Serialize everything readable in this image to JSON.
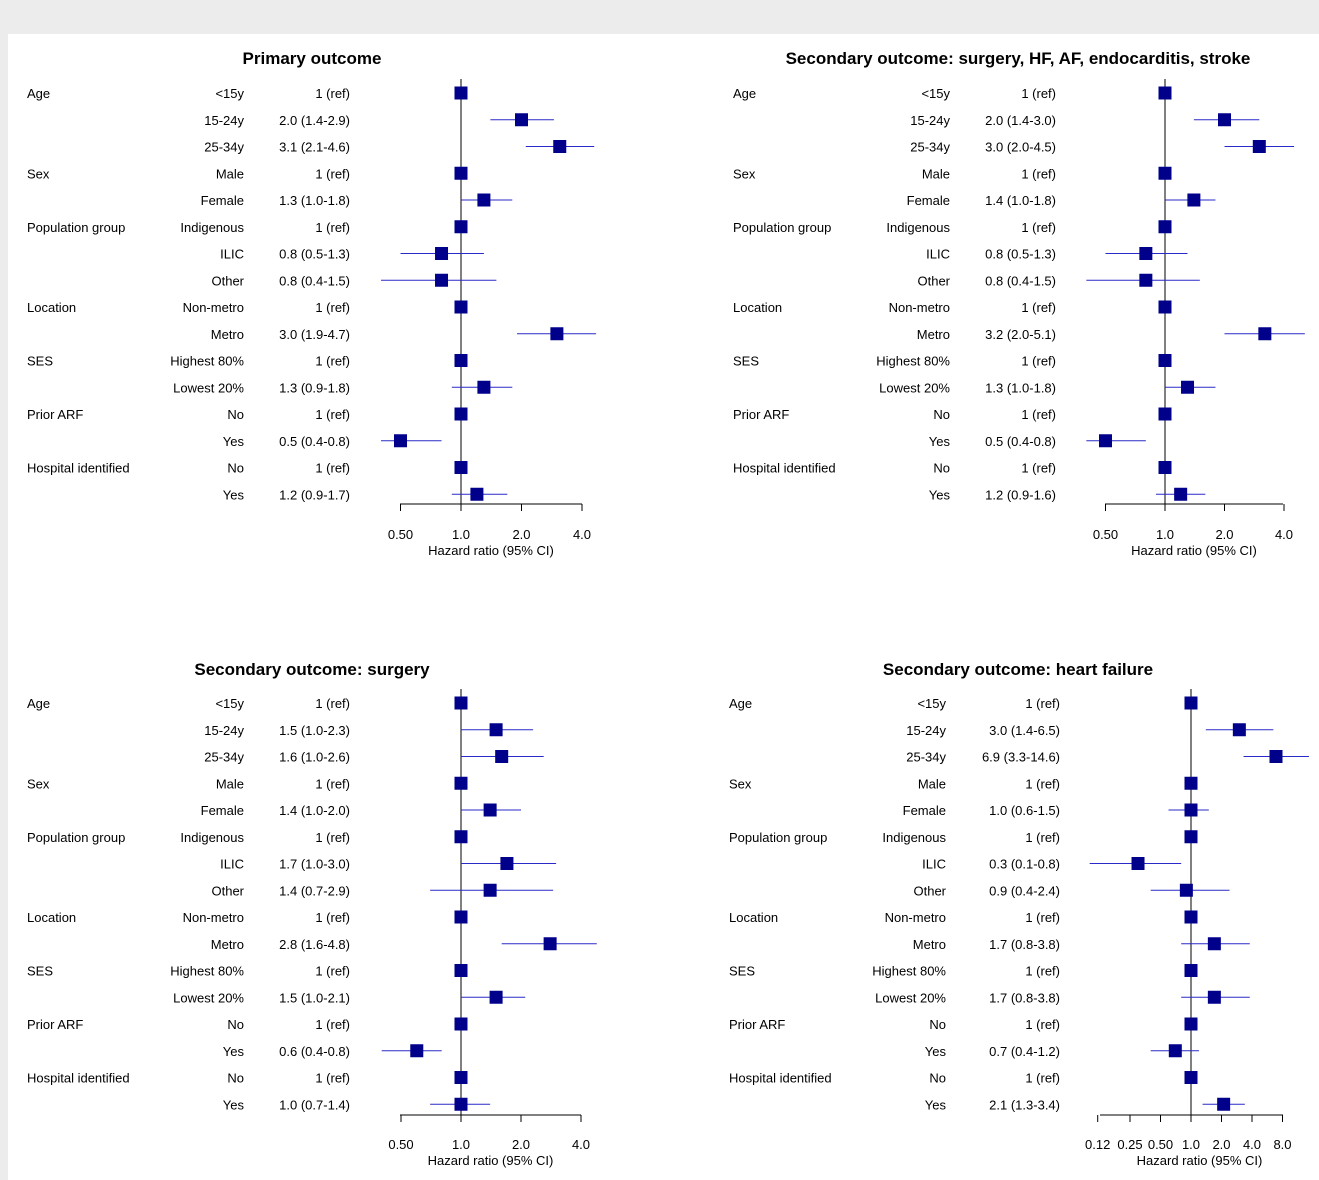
{
  "chart_data": [
    {
      "type": "forest",
      "title": "Primary outcome",
      "xlabel": "Hazard ratio (95% CI)",
      "x_scale": "log",
      "xticks": [
        0.5,
        1.0,
        2.0,
        4.0
      ],
      "xtick_labels": [
        "0.50",
        "1.0",
        "2.0",
        "4.0"
      ],
      "reference_line": 1.0,
      "rows": [
        {
          "variable": "Age",
          "level": "<15y",
          "label": "1 (ref)",
          "hr": 1.0,
          "lo": null,
          "hi": null
        },
        {
          "variable": "",
          "level": "15-24y",
          "label": "2.0 (1.4-2.9)",
          "hr": 2.0,
          "lo": 1.4,
          "hi": 2.9
        },
        {
          "variable": "",
          "level": "25-34y",
          "label": "3.1 (2.1-4.6)",
          "hr": 3.1,
          "lo": 2.1,
          "hi": 4.6
        },
        {
          "variable": "Sex",
          "level": "Male",
          "label": "1 (ref)",
          "hr": 1.0,
          "lo": null,
          "hi": null
        },
        {
          "variable": "",
          "level": "Female",
          "label": "1.3 (1.0-1.8)",
          "hr": 1.3,
          "lo": 1.0,
          "hi": 1.8
        },
        {
          "variable": "Population group",
          "level": "Indigenous",
          "label": "1 (ref)",
          "hr": 1.0,
          "lo": null,
          "hi": null
        },
        {
          "variable": "",
          "level": "ILIC",
          "label": "0.8 (0.5-1.3)",
          "hr": 0.8,
          "lo": 0.5,
          "hi": 1.3
        },
        {
          "variable": "",
          "level": "Other",
          "label": "0.8 (0.4-1.5)",
          "hr": 0.8,
          "lo": 0.4,
          "hi": 1.5
        },
        {
          "variable": "Location",
          "level": "Non-metro",
          "label": "1 (ref)",
          "hr": 1.0,
          "lo": null,
          "hi": null
        },
        {
          "variable": "",
          "level": "Metro",
          "label": "3.0 (1.9-4.7)",
          "hr": 3.0,
          "lo": 1.9,
          "hi": 4.7
        },
        {
          "variable": "SES",
          "level": "Highest 80%",
          "label": "1 (ref)",
          "hr": 1.0,
          "lo": null,
          "hi": null
        },
        {
          "variable": "",
          "level": "Lowest 20%",
          "label": "1.3 (0.9-1.8)",
          "hr": 1.3,
          "lo": 0.9,
          "hi": 1.8
        },
        {
          "variable": "Prior ARF",
          "level": "No",
          "label": "1 (ref)",
          "hr": 1.0,
          "lo": null,
          "hi": null
        },
        {
          "variable": "",
          "level": "Yes",
          "label": "0.5 (0.4-0.8)",
          "hr": 0.5,
          "lo": 0.4,
          "hi": 0.8
        },
        {
          "variable": "Hospital identified",
          "level": "No",
          "label": "1 (ref)",
          "hr": 1.0,
          "lo": null,
          "hi": null
        },
        {
          "variable": "",
          "level": "Yes",
          "label": "1.2 (0.9-1.7)",
          "hr": 1.2,
          "lo": 0.9,
          "hi": 1.7
        }
      ]
    },
    {
      "type": "forest",
      "title": "Secondary outcome: surgery, HF, AF, endocarditis, stroke",
      "xlabel": "Hazard ratio (95% CI)",
      "x_scale": "log",
      "xticks": [
        0.5,
        1.0,
        2.0,
        4.0
      ],
      "xtick_labels": [
        "0.50",
        "1.0",
        "2.0",
        "4.0"
      ],
      "reference_line": 1.0,
      "rows": [
        {
          "variable": "Age",
          "level": "<15y",
          "label": "1 (ref)",
          "hr": 1.0,
          "lo": null,
          "hi": null
        },
        {
          "variable": "",
          "level": "15-24y",
          "label": "2.0 (1.4-3.0)",
          "hr": 2.0,
          "lo": 1.4,
          "hi": 3.0
        },
        {
          "variable": "",
          "level": "25-34y",
          "label": "3.0 (2.0-4.5)",
          "hr": 3.0,
          "lo": 2.0,
          "hi": 4.5
        },
        {
          "variable": "Sex",
          "level": "Male",
          "label": "1 (ref)",
          "hr": 1.0,
          "lo": null,
          "hi": null
        },
        {
          "variable": "",
          "level": "Female",
          "label": "1.4 (1.0-1.8)",
          "hr": 1.4,
          "lo": 1.0,
          "hi": 1.8
        },
        {
          "variable": "Population group",
          "level": "Indigenous",
          "label": "1 (ref)",
          "hr": 1.0,
          "lo": null,
          "hi": null
        },
        {
          "variable": "",
          "level": "ILIC",
          "label": "0.8 (0.5-1.3)",
          "hr": 0.8,
          "lo": 0.5,
          "hi": 1.3
        },
        {
          "variable": "",
          "level": "Other",
          "label": "0.8 (0.4-1.5)",
          "hr": 0.8,
          "lo": 0.4,
          "hi": 1.5
        },
        {
          "variable": "Location",
          "level": "Non-metro",
          "label": "1 (ref)",
          "hr": 1.0,
          "lo": null,
          "hi": null
        },
        {
          "variable": "",
          "level": "Metro",
          "label": "3.2 (2.0-5.1)",
          "hr": 3.2,
          "lo": 2.0,
          "hi": 5.1
        },
        {
          "variable": "SES",
          "level": "Highest 80%",
          "label": "1 (ref)",
          "hr": 1.0,
          "lo": null,
          "hi": null
        },
        {
          "variable": "",
          "level": "Lowest 20%",
          "label": "1.3 (1.0-1.8)",
          "hr": 1.3,
          "lo": 1.0,
          "hi": 1.8
        },
        {
          "variable": "Prior ARF",
          "level": "No",
          "label": "1 (ref)",
          "hr": 1.0,
          "lo": null,
          "hi": null
        },
        {
          "variable": "",
          "level": "Yes",
          "label": "0.5 (0.4-0.8)",
          "hr": 0.5,
          "lo": 0.4,
          "hi": 0.8
        },
        {
          "variable": "Hospital identified",
          "level": "No",
          "label": "1 (ref)",
          "hr": 1.0,
          "lo": null,
          "hi": null
        },
        {
          "variable": "",
          "level": "Yes",
          "label": "1.2 (0.9-1.6)",
          "hr": 1.2,
          "lo": 0.9,
          "hi": 1.6
        }
      ]
    },
    {
      "type": "forest",
      "title": "Secondary outcome: surgery",
      "xlabel": "Hazard ratio (95% CI)",
      "x_scale": "log",
      "xticks": [
        0.5,
        1.0,
        2.0,
        4.0
      ],
      "xtick_labels": [
        "0.50",
        "1.0",
        "2.0",
        "4.0"
      ],
      "reference_line": 1.0,
      "rows": [
        {
          "variable": "Age",
          "level": "<15y",
          "label": "1 (ref)",
          "hr": 1.0,
          "lo": null,
          "hi": null
        },
        {
          "variable": "",
          "level": "15-24y",
          "label": "1.5 (1.0-2.3)",
          "hr": 1.5,
          "lo": 1.0,
          "hi": 2.3
        },
        {
          "variable": "",
          "level": "25-34y",
          "label": "1.6 (1.0-2.6)",
          "hr": 1.6,
          "lo": 1.0,
          "hi": 2.6
        },
        {
          "variable": "Sex",
          "level": "Male",
          "label": "1 (ref)",
          "hr": 1.0,
          "lo": null,
          "hi": null
        },
        {
          "variable": "",
          "level": "Female",
          "label": "1.4 (1.0-2.0)",
          "hr": 1.4,
          "lo": 1.0,
          "hi": 2.0
        },
        {
          "variable": "Population group",
          "level": "Indigenous",
          "label": "1 (ref)",
          "hr": 1.0,
          "lo": null,
          "hi": null
        },
        {
          "variable": "",
          "level": "ILIC",
          "label": "1.7 (1.0-3.0)",
          "hr": 1.7,
          "lo": 1.0,
          "hi": 3.0
        },
        {
          "variable": "",
          "level": "Other",
          "label": "1.4 (0.7-2.9)",
          "hr": 1.4,
          "lo": 0.7,
          "hi": 2.9
        },
        {
          "variable": "Location",
          "level": "Non-metro",
          "label": "1 (ref)",
          "hr": 1.0,
          "lo": null,
          "hi": null
        },
        {
          "variable": "",
          "level": "Metro",
          "label": "2.8 (1.6-4.8)",
          "hr": 2.8,
          "lo": 1.6,
          "hi": 4.8
        },
        {
          "variable": "SES",
          "level": "Highest 80%",
          "label": "1 (ref)",
          "hr": 1.0,
          "lo": null,
          "hi": null
        },
        {
          "variable": "",
          "level": "Lowest 20%",
          "label": "1.5 (1.0-2.1)",
          "hr": 1.5,
          "lo": 1.0,
          "hi": 2.1
        },
        {
          "variable": "Prior ARF",
          "level": "No",
          "label": "1 (ref)",
          "hr": 1.0,
          "lo": null,
          "hi": null
        },
        {
          "variable": "",
          "level": "Yes",
          "label": "0.6 (0.4-0.8)",
          "hr": 0.6,
          "lo": 0.4,
          "hi": 0.8
        },
        {
          "variable": "Hospital identified",
          "level": "No",
          "label": "1 (ref)",
          "hr": 1.0,
          "lo": null,
          "hi": null
        },
        {
          "variable": "",
          "level": "Yes",
          "label": "1.0 (0.7-1.4)",
          "hr": 1.0,
          "lo": 0.7,
          "hi": 1.4
        }
      ]
    },
    {
      "type": "forest",
      "title": "Secondary outcome: heart failure",
      "xlabel": "Hazard ratio (95% CI)",
      "x_scale": "log",
      "xticks": [
        0.12,
        0.25,
        0.5,
        1.0,
        2.0,
        4.0,
        8.0
      ],
      "xtick_labels": [
        "0.12",
        "0.25",
        "0.50",
        "1.0",
        "2.0",
        "4.0",
        "8.0"
      ],
      "reference_line": 1.0,
      "rows": [
        {
          "variable": "Age",
          "level": "<15y",
          "label": "1 (ref)",
          "hr": 1.0,
          "lo": null,
          "hi": null
        },
        {
          "variable": "",
          "level": "15-24y",
          "label": "3.0 (1.4-6.5)",
          "hr": 3.0,
          "lo": 1.4,
          "hi": 6.5
        },
        {
          "variable": "",
          "level": "25-34y",
          "label": "6.9 (3.3-14.6)",
          "hr": 6.9,
          "lo": 3.3,
          "hi": 14.6
        },
        {
          "variable": "Sex",
          "level": "Male",
          "label": "1 (ref)",
          "hr": 1.0,
          "lo": null,
          "hi": null
        },
        {
          "variable": "",
          "level": "Female",
          "label": "1.0 (0.6-1.5)",
          "hr": 1.0,
          "lo": 0.6,
          "hi": 1.5
        },
        {
          "variable": "Population group",
          "level": "Indigenous",
          "label": "1 (ref)",
          "hr": 1.0,
          "lo": null,
          "hi": null
        },
        {
          "variable": "",
          "level": "ILIC",
          "label": "0.3 (0.1-0.8)",
          "hr": 0.3,
          "lo": 0.1,
          "hi": 0.8
        },
        {
          "variable": "",
          "level": "Other",
          "label": "0.9 (0.4-2.4)",
          "hr": 0.9,
          "lo": 0.4,
          "hi": 2.4
        },
        {
          "variable": "Location",
          "level": "Non-metro",
          "label": "1 (ref)",
          "hr": 1.0,
          "lo": null,
          "hi": null
        },
        {
          "variable": "",
          "level": "Metro",
          "label": "1.7 (0.8-3.8)",
          "hr": 1.7,
          "lo": 0.8,
          "hi": 3.8
        },
        {
          "variable": "SES",
          "level": "Highest 80%",
          "label": "1 (ref)",
          "hr": 1.0,
          "lo": null,
          "hi": null
        },
        {
          "variable": "",
          "level": "Lowest 20%",
          "label": "1.7 (0.8-3.8)",
          "hr": 1.7,
          "lo": 0.8,
          "hi": 3.8
        },
        {
          "variable": "Prior ARF",
          "level": "No",
          "label": "1 (ref)",
          "hr": 1.0,
          "lo": null,
          "hi": null
        },
        {
          "variable": "",
          "level": "Yes",
          "label": "0.7 (0.4-1.2)",
          "hr": 0.7,
          "lo": 0.4,
          "hi": 1.2
        },
        {
          "variable": "Hospital identified",
          "level": "No",
          "label": "1 (ref)",
          "hr": 1.0,
          "lo": null,
          "hi": null
        },
        {
          "variable": "",
          "level": "Yes",
          "label": "2.1 (1.3-3.4)",
          "hr": 2.1,
          "lo": 1.3,
          "hi": 3.4
        }
      ]
    }
  ],
  "colors": {
    "marker": "#00008b",
    "ci_line": "#2a2ac8",
    "axis": "#000000",
    "background": "#ffffff",
    "frame": "#ececec"
  }
}
